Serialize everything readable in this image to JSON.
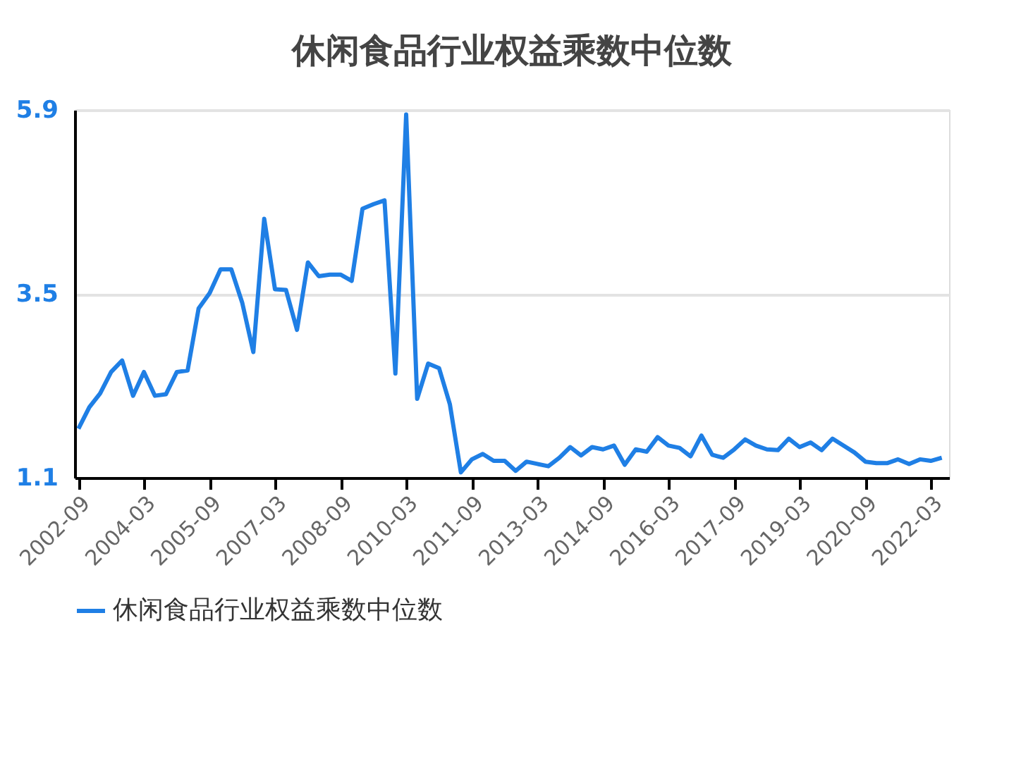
{
  "chart_data": {
    "type": "line",
    "title": "休闲食品行业权益乘数中位数",
    "x": [
      "2002-09",
      "2002-12",
      "2003-03",
      "2003-06",
      "2003-09",
      "2003-12",
      "2004-03",
      "2004-06",
      "2004-09",
      "2004-12",
      "2005-03",
      "2005-06",
      "2005-09",
      "2005-12",
      "2006-03",
      "2006-06",
      "2006-09",
      "2006-12",
      "2007-03",
      "2007-06",
      "2007-09",
      "2007-12",
      "2008-03",
      "2008-06",
      "2008-09",
      "2008-12",
      "2009-03",
      "2009-06",
      "2009-09",
      "2009-12",
      "2010-03",
      "2010-06",
      "2010-09",
      "2010-12",
      "2011-03",
      "2011-06",
      "2011-09",
      "2011-12",
      "2012-03",
      "2012-06",
      "2012-09",
      "2012-12",
      "2013-03",
      "2013-06",
      "2013-09",
      "2013-12",
      "2014-03",
      "2014-06",
      "2014-09",
      "2014-12",
      "2015-03",
      "2015-06",
      "2015-09",
      "2015-12",
      "2016-03",
      "2016-06",
      "2016-09",
      "2016-12",
      "2017-03",
      "2017-06",
      "2017-09",
      "2017-12",
      "2018-03",
      "2018-06",
      "2018-09",
      "2018-12",
      "2019-03",
      "2019-06",
      "2019-09",
      "2019-12",
      "2020-03",
      "2020-06",
      "2020-09",
      "2020-12",
      "2021-03",
      "2021-06",
      "2021-09",
      "2021-12",
      "2022-03",
      "2022-06"
    ],
    "series": [
      {
        "name": "休闲食品行业权益乘数中位数",
        "color": "#1f7fe5",
        "values": [
          1.74,
          2.02,
          2.2,
          2.48,
          2.63,
          2.17,
          2.48,
          2.17,
          2.19,
          2.48,
          2.5,
          3.31,
          3.51,
          3.82,
          3.82,
          3.38,
          2.74,
          4.48,
          3.56,
          3.55,
          3.03,
          3.91,
          3.73,
          3.75,
          3.75,
          3.67,
          4.61,
          4.67,
          4.72,
          2.46,
          5.84,
          2.13,
          2.59,
          2.53,
          2.06,
          1.17,
          1.34,
          1.41,
          1.32,
          1.32,
          1.19,
          1.31,
          1.28,
          1.25,
          1.36,
          1.5,
          1.39,
          1.5,
          1.47,
          1.52,
          1.27,
          1.47,
          1.44,
          1.63,
          1.52,
          1.49,
          1.38,
          1.65,
          1.4,
          1.36,
          1.47,
          1.6,
          1.52,
          1.47,
          1.46,
          1.61,
          1.5,
          1.56,
          1.46,
          1.61,
          1.52,
          1.43,
          1.31,
          1.29,
          1.29,
          1.34,
          1.28,
          1.34,
          1.32,
          1.36
        ]
      }
    ],
    "xlim": [
      "2002-08",
      "2022-08"
    ],
    "xticks": [
      "2002-09",
      "2004-03",
      "2005-09",
      "2007-03",
      "2008-09",
      "2010-03",
      "2011-09",
      "2013-03",
      "2014-09",
      "2016-03",
      "2017-09",
      "2019-03",
      "2020-09",
      "2022-03"
    ],
    "ylim": [
      1.1,
      5.9
    ],
    "yticks": [
      1.1,
      3.5,
      5.9
    ],
    "grid": "y",
    "legend": "bottom",
    "marker": "none",
    "line_style": "solid"
  }
}
